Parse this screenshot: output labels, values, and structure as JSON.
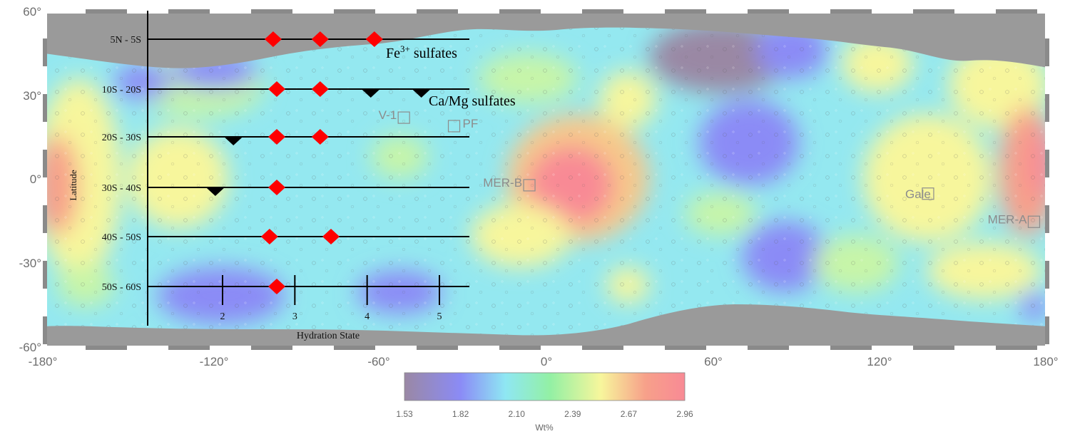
{
  "map": {
    "lat_labels": [
      "60°",
      "30°",
      "0°",
      "-30°",
      "-60°"
    ],
    "lon_labels": [
      "-180°",
      "-120°",
      "-60°",
      "0°",
      "60°",
      "120°",
      "180°"
    ],
    "sites": [
      {
        "label": "V-1",
        "lon": -51,
        "lat": 22
      },
      {
        "label": "PF",
        "lon": -33,
        "lat": 19
      },
      {
        "label": "MER-B",
        "lon": -6,
        "lat": -2
      },
      {
        "label": "Gale",
        "lon": 137,
        "lat": -5
      },
      {
        "label": "MER-A",
        "lon": 175,
        "lat": -15
      }
    ]
  },
  "overlay": {
    "latitude_axis_label": "Latitude",
    "hydration_axis_label": "Hydration State",
    "hydration_ticks": [
      "2",
      "3",
      "4",
      "5"
    ],
    "bands": [
      "5N - 5S",
      "10S - 20S",
      "20S - 30S",
      "30S - 40S",
      "40S - 50S",
      "50S - 60S"
    ],
    "fe_label": "Fe",
    "fe_superscript": "3+",
    "fe_label_suffix": " sulfates",
    "ca_label": "Ca/Mg sulfates",
    "markers": [
      {
        "band": 0,
        "hydration": 2.7,
        "type": "Fe3+ sulfate",
        "color": "#ff0000"
      },
      {
        "band": 0,
        "hydration": 3.35,
        "type": "Fe3+ sulfate",
        "color": "#ff0000"
      },
      {
        "band": 0,
        "hydration": 4.1,
        "type": "Fe3+ sulfate",
        "color": "#ff0000"
      },
      {
        "band": 1,
        "hydration": 2.75,
        "type": "Fe3+ sulfate",
        "color": "#ff0000"
      },
      {
        "band": 1,
        "hydration": 3.35,
        "type": "Fe3+ sulfate",
        "color": "#ff0000"
      },
      {
        "band": 1,
        "hydration": 4.05,
        "type": "Ca/Mg sulfate",
        "color": "#000000"
      },
      {
        "band": 1,
        "hydration": 4.75,
        "type": "Ca/Mg sulfate",
        "color": "#000000"
      },
      {
        "band": 2,
        "hydration": 2.15,
        "type": "Ca/Mg sulfate",
        "color": "#000000"
      },
      {
        "band": 2,
        "hydration": 2.75,
        "type": "Fe3+ sulfate",
        "color": "#ff0000"
      },
      {
        "band": 2,
        "hydration": 3.35,
        "type": "Fe3+ sulfate",
        "color": "#ff0000"
      },
      {
        "band": 3,
        "hydration": 1.9,
        "type": "Ca/Mg sulfate",
        "color": "#000000"
      },
      {
        "band": 3,
        "hydration": 2.75,
        "type": "Fe3+ sulfate",
        "color": "#ff0000"
      },
      {
        "band": 4,
        "hydration": 2.65,
        "type": "Fe3+ sulfate",
        "color": "#ff0000"
      },
      {
        "band": 4,
        "hydration": 3.5,
        "type": "Fe3+ sulfate",
        "color": "#ff0000"
      },
      {
        "band": 5,
        "hydration": 2.75,
        "type": "Fe3+ sulfate",
        "color": "#ff0000"
      }
    ]
  },
  "colorbar": {
    "ticks": [
      "1.53",
      "1.82",
      "2.10",
      "2.39",
      "2.67",
      "2.96"
    ],
    "unit": "Wt%",
    "stops": [
      "#9a88a4",
      "#8b8bf6",
      "#8fe7f3",
      "#93f0a4",
      "#f7f69c",
      "#f7a08a",
      "#f88a95"
    ]
  },
  "colors": {
    "no_data": "#9a9a9a",
    "frame": "#ffffff"
  }
}
